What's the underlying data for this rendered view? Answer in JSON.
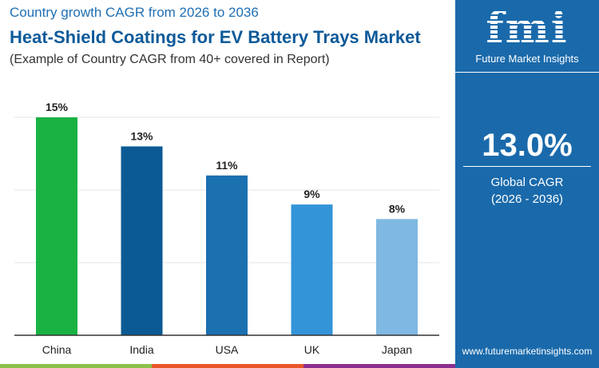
{
  "header": {
    "subtitle_top": "Country growth CAGR from 2026 to 2036",
    "title": "Heat-Shield Coatings for EV Battery Trays Market",
    "note": "(Example of Country CAGR from 40+ covered in Report)"
  },
  "panel": {
    "logo_text": "fmi",
    "brand": "Future Market Insights",
    "global_cagr": "13.0%",
    "cagr_label": "Global CAGR",
    "cagr_period": "(2026 - 2036)",
    "url": "www.futuremarketinsights.com",
    "bg_color": "#1a6aab"
  },
  "chart_data": {
    "type": "bar",
    "categories": [
      "China",
      "India",
      "USA",
      "UK",
      "Japan"
    ],
    "values": [
      15,
      13,
      11,
      9,
      8
    ],
    "data_labels": [
      "15%",
      "13%",
      "11%",
      "9%",
      "8%"
    ],
    "colors": [
      "#19b243",
      "#0b5a93",
      "#1b70b0",
      "#3394d8",
      "#7fb8e2"
    ],
    "ylim": [
      0,
      15
    ],
    "grid": true,
    "xlabel": "",
    "ylabel": ""
  },
  "footer_colors": [
    "#8cc04a",
    "#e8572a",
    "#8a2f8f"
  ]
}
